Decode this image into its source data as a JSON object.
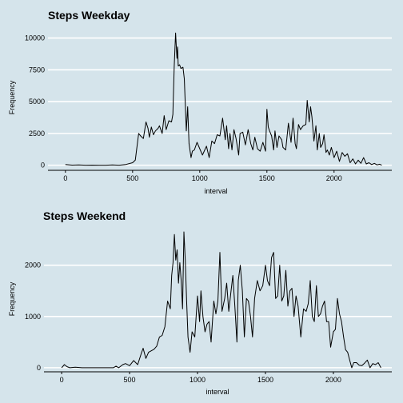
{
  "chart_data": [
    {
      "type": "line",
      "title": "Steps Weekday",
      "xlabel": "interval",
      "ylabel": "Frequency",
      "xlim": [
        -130,
        2430
      ],
      "ylim": [
        -400,
        10600
      ],
      "xticks": [
        0,
        500,
        1000,
        1500,
        2000
      ],
      "yticks": [
        0,
        2500,
        5000,
        7500,
        10000
      ],
      "grid": true,
      "series": [
        {
          "x": [
            0,
            50,
            100,
            150,
            200,
            250,
            300,
            350,
            400,
            450,
            500,
            520,
            545,
            560,
            580,
            600,
            615,
            625,
            640,
            655,
            670,
            690,
            700,
            720,
            735,
            750,
            770,
            790,
            800,
            810,
            820,
            830,
            835,
            840,
            850,
            860,
            875,
            885,
            900,
            910,
            920,
            935,
            945,
            960,
            980,
            1000,
            1020,
            1050,
            1070,
            1090,
            1110,
            1130,
            1150,
            1170,
            1190,
            1200,
            1215,
            1225,
            1240,
            1255,
            1270,
            1290,
            1300,
            1320,
            1340,
            1360,
            1380,
            1395,
            1410,
            1430,
            1450,
            1470,
            1490,
            1500,
            1510,
            1520,
            1535,
            1550,
            1560,
            1575,
            1590,
            1610,
            1620,
            1640,
            1660,
            1680,
            1695,
            1710,
            1720,
            1735,
            1750,
            1770,
            1790,
            1800,
            1815,
            1825,
            1835,
            1850,
            1865,
            1875,
            1890,
            1900,
            1915,
            1925,
            1940,
            1950,
            1965,
            1980,
            2000,
            2020,
            2040,
            2060,
            2080,
            2100,
            2120,
            2140,
            2160,
            2180,
            2200,
            2220,
            2240,
            2260,
            2280,
            2300,
            2320,
            2340,
            2355
          ],
          "y": [
            50,
            10,
            20,
            0,
            10,
            0,
            0,
            20,
            0,
            60,
            200,
            400,
            2500,
            2300,
            2100,
            3400,
            2900,
            2200,
            3000,
            2400,
            2700,
            2900,
            3100,
            2500,
            3900,
            2800,
            3500,
            3400,
            4000,
            7800,
            10400,
            8400,
            9300,
            7800,
            7900,
            7600,
            7700,
            6800,
            2700,
            4600,
            1700,
            600,
            1100,
            1200,
            1800,
            1300,
            800,
            1500,
            600,
            1900,
            1700,
            2400,
            2300,
            3700,
            2000,
            3100,
            1300,
            2500,
            1200,
            2800,
            2100,
            800,
            2500,
            2600,
            1600,
            2800,
            1700,
            1200,
            2200,
            1300,
            1100,
            1800,
            1100,
            4400,
            3000,
            2700,
            2300,
            1200,
            2700,
            1400,
            2300,
            2000,
            1400,
            1200,
            3300,
            1800,
            3700,
            1700,
            1300,
            3200,
            2800,
            3100,
            3200,
            5100,
            3400,
            4600,
            3800,
            1900,
            3100,
            1200,
            2500,
            1400,
            1700,
            2400,
            1000,
            1200,
            800,
            1400,
            600,
            1100,
            300,
            1000,
            700,
            900,
            200,
            500,
            100,
            400,
            150,
            600,
            100,
            200,
            50,
            150,
            30,
            80,
            0
          ]
        }
      ]
    },
    {
      "type": "line",
      "title": "Steps Weekend",
      "xlabel": "interval",
      "ylabel": "Frequency",
      "xlim": [
        -130,
        2430
      ],
      "ylim": [
        -80,
        2650
      ],
      "xticks": [
        0,
        500,
        1000,
        1500,
        2000
      ],
      "yticks": [
        0,
        1000,
        2000
      ],
      "grid": true,
      "series": [
        {
          "x": [
            0,
            20,
            40,
            60,
            100,
            150,
            200,
            250,
            300,
            350,
            380,
            400,
            420,
            450,
            470,
            500,
            530,
            560,
            585,
            600,
            620,
            640,
            660,
            680,
            700,
            720,
            740,
            760,
            780,
            800,
            810,
            820,
            830,
            840,
            850,
            860,
            870,
            880,
            890,
            900,
            910,
            920,
            930,
            945,
            960,
            980,
            1000,
            1015,
            1025,
            1040,
            1055,
            1070,
            1085,
            1100,
            1120,
            1135,
            1150,
            1165,
            1180,
            1200,
            1215,
            1230,
            1245,
            1260,
            1275,
            1290,
            1300,
            1315,
            1330,
            1345,
            1360,
            1375,
            1390,
            1405,
            1420,
            1440,
            1460,
            1480,
            1500,
            1515,
            1530,
            1545,
            1560,
            1575,
            1590,
            1605,
            1620,
            1635,
            1650,
            1665,
            1680,
            1695,
            1710,
            1725,
            1740,
            1760,
            1780,
            1800,
            1815,
            1830,
            1845,
            1860,
            1875,
            1890,
            1905,
            1920,
            1935,
            1950,
            1965,
            1980,
            2000,
            2015,
            2030,
            2045,
            2060,
            2075,
            2090,
            2105,
            2120,
            2135,
            2150,
            2170,
            2190,
            2210,
            2230,
            2250,
            2270,
            2290,
            2310,
            2330,
            2350
          ],
          "y": [
            0,
            60,
            20,
            0,
            10,
            0,
            0,
            0,
            0,
            0,
            0,
            30,
            0,
            60,
            80,
            40,
            140,
            60,
            270,
            380,
            180,
            300,
            330,
            360,
            420,
            600,
            630,
            800,
            1300,
            1150,
            1800,
            2050,
            2600,
            2100,
            2300,
            1650,
            2050,
            1700,
            1150,
            2650,
            2100,
            1300,
            600,
            300,
            700,
            600,
            1400,
            900,
            1500,
            1000,
            700,
            850,
            900,
            500,
            1300,
            1050,
            1300,
            2250,
            1100,
            1350,
            1650,
            1100,
            1450,
            1800,
            1200,
            500,
            1700,
            2000,
            1500,
            600,
            1350,
            1300,
            1000,
            600,
            1350,
            1700,
            1500,
            1600,
            2000,
            1700,
            1600,
            2150,
            2250,
            1350,
            1400,
            2000,
            1300,
            1400,
            1900,
            1200,
            1500,
            1550,
            1000,
            1400,
            1200,
            600,
            1150,
            1100,
            1250,
            1700,
            1000,
            900,
            1600,
            1000,
            1050,
            1200,
            1300,
            900,
            900,
            400,
            700,
            750,
            1350,
            1050,
            900,
            600,
            350,
            300,
            150,
            0,
            100,
            100,
            50,
            40,
            90,
            150,
            0,
            80,
            60,
            100,
            0
          ]
        }
      ]
    }
  ]
}
